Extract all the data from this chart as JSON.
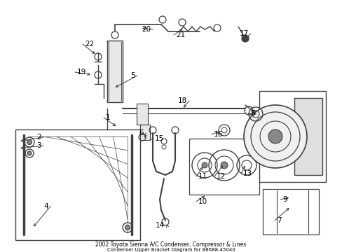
{
  "title1": "2002 Toyota Sienna A/C Condenser, Compressor & Lines",
  "title2": "Condenser Upper Bracket Diagram for 88688-45040",
  "background_color": "#ffffff",
  "line_color": "#404040",
  "text_color": "#000000",
  "fig_width": 4.89,
  "fig_height": 3.6,
  "dpi": 100
}
